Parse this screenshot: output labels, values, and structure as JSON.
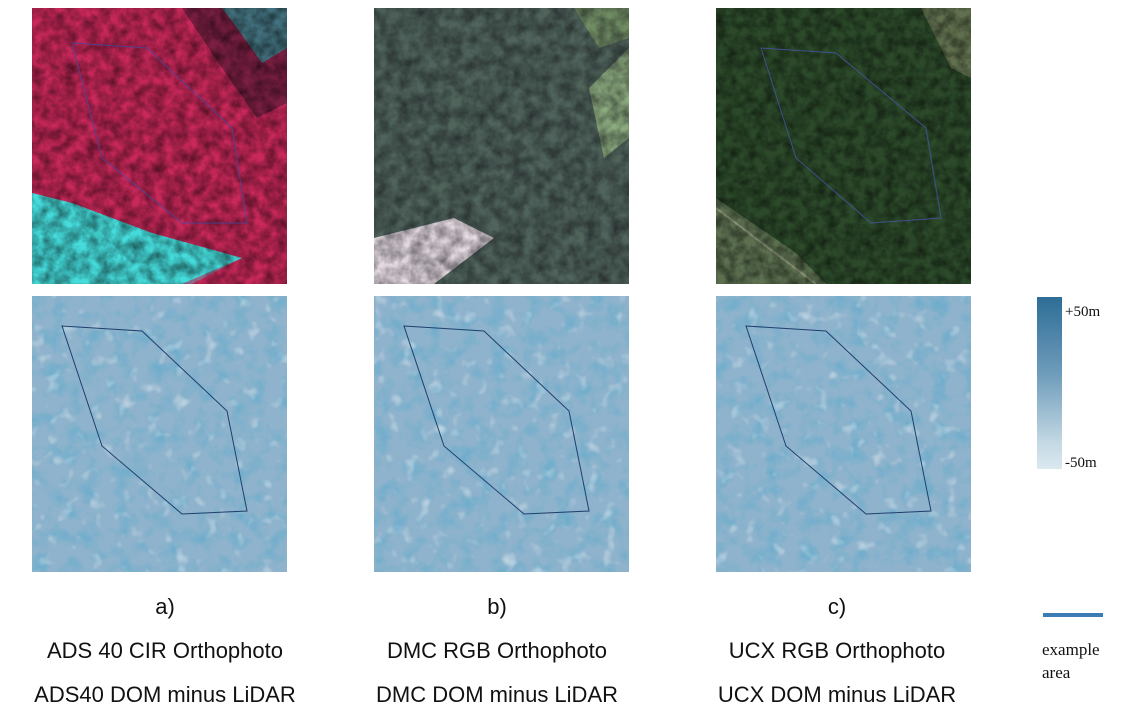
{
  "panels": [
    {
      "letter": "a)",
      "top_caption": "ADS 40 CIR Orthophoto",
      "bottom_caption": "ADS40 DOM minus LiDAR"
    },
    {
      "letter": "b)",
      "top_caption": "DMC RGB Orthophoto",
      "bottom_caption": "DMC DOM minus LiDAR"
    },
    {
      "letter": "c)",
      "top_caption": "UCX RGB Orthophoto",
      "bottom_caption": "UCX DOM minus LiDAR"
    }
  ],
  "colorbar": {
    "max_label": "+50m",
    "min_label": "-50m",
    "top_color": "#2e6d97",
    "bottom_color": "#dbe9ef"
  },
  "legend": {
    "label": "example area",
    "line_color": "#3a7cb3"
  },
  "colors": {
    "cir_canopy": "#c8285a",
    "cir_water": "#4fe0e0",
    "dmc_canopy": "#3f5a48",
    "ucx_canopy": "#2c4a2a",
    "dom_base": "#8fb3cc",
    "dom_dark": "#2a6a98"
  }
}
